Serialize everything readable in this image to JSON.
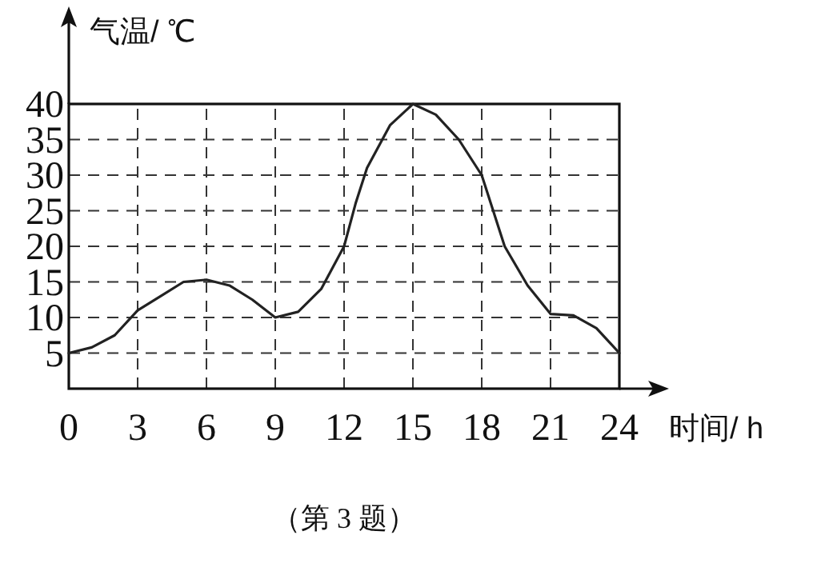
{
  "chart_data": {
    "type": "line",
    "xlabel": "时间/ h",
    "ylabel": "气温/ ℃",
    "x": [
      0,
      1,
      2,
      3,
      4,
      5,
      6,
      7,
      8,
      9,
      10,
      11,
      12,
      12.5,
      13,
      14,
      15,
      16,
      17,
      18,
      18.5,
      19,
      20,
      21,
      22,
      23,
      24
    ],
    "series": [
      {
        "color": "#222222",
        "values": [
          5,
          5.8,
          7.5,
          11,
          13,
          15,
          15.3,
          14.5,
          12.5,
          10,
          10.8,
          14,
          20,
          26,
          31,
          37,
          40,
          38.5,
          35,
          30,
          25,
          20,
          14.5,
          10.5,
          10.3,
          8.5,
          5
        ]
      }
    ],
    "xlim": [
      0,
      24
    ],
    "ylim": [
      0,
      40
    ],
    "xticks": [
      0,
      3,
      6,
      9,
      12,
      15,
      18,
      21,
      24
    ],
    "yticks": [
      5,
      10,
      15,
      20,
      25,
      30,
      35,
      40
    ],
    "grid": true,
    "marker": "none",
    "line_style": "solid",
    "annotations": [
      "（第 3 题）"
    ]
  }
}
